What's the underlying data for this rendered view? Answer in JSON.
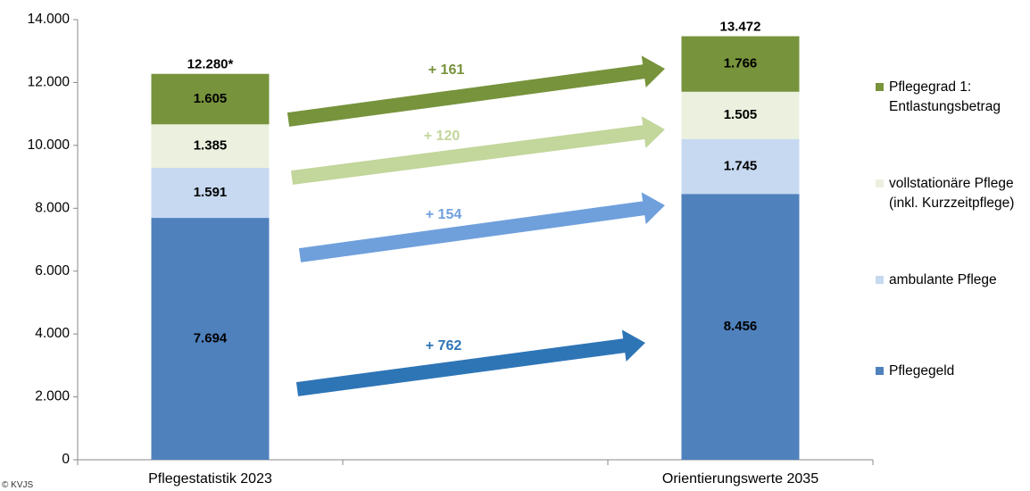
{
  "chart_data": {
    "type": "bar",
    "stacked": true,
    "categories": [
      "Pflegestatistik 2023",
      null,
      "Orientierungswerte 2035"
    ],
    "series": [
      {
        "name": "Pflegegeld",
        "color": "#4f81bd",
        "values": [
          7694,
          null,
          8456
        ],
        "value_labels": [
          "7.694",
          null,
          "8.456"
        ]
      },
      {
        "name": "ambulante Pflege",
        "color": "#c6d9f1",
        "values": [
          1591,
          null,
          1745
        ],
        "value_labels": [
          "1.591",
          null,
          "1.745"
        ]
      },
      {
        "name": "vollstationäre Pflege (inkl. Kurzzeitpflege)",
        "color": "#ebf1de",
        "values": [
          1385,
          null,
          1505
        ],
        "value_labels": [
          "1.385",
          null,
          "1.505"
        ]
      },
      {
        "name": "Pflegegrad 1: Entlastungsbetrag",
        "color": "#77933c",
        "values": [
          1605,
          null,
          1766
        ],
        "value_labels": [
          "1.605",
          null,
          "1.766"
        ]
      }
    ],
    "totals": {
      "values": [
        12280,
        null,
        13472
      ],
      "value_labels": [
        "12.280*",
        null,
        "13.472"
      ]
    },
    "annotations": [
      {
        "label": "+ 161",
        "color": "#77933c"
      },
      {
        "label": "+ 120",
        "color": "#c3d69b"
      },
      {
        "label": "+ 154",
        "color": "#6fa0dc"
      },
      {
        "label": "+ 762",
        "color": "#2e75b6"
      }
    ],
    "ylim": [
      0,
      14000
    ],
    "yticks": [
      0,
      {
        "value": 2000,
        "label": "2.000"
      },
      {
        "value": 4000,
        "label": "4.000"
      },
      {
        "value": 6000,
        "label": "6.000"
      },
      {
        "value": 8000,
        "label": "8.000"
      },
      {
        "value": 10000,
        "label": "10.000"
      },
      {
        "value": 12000,
        "label": "12.000"
      },
      {
        "value": 14000,
        "label": "14.000"
      }
    ],
    "legend": "right",
    "footnote": "© KVJS"
  }
}
